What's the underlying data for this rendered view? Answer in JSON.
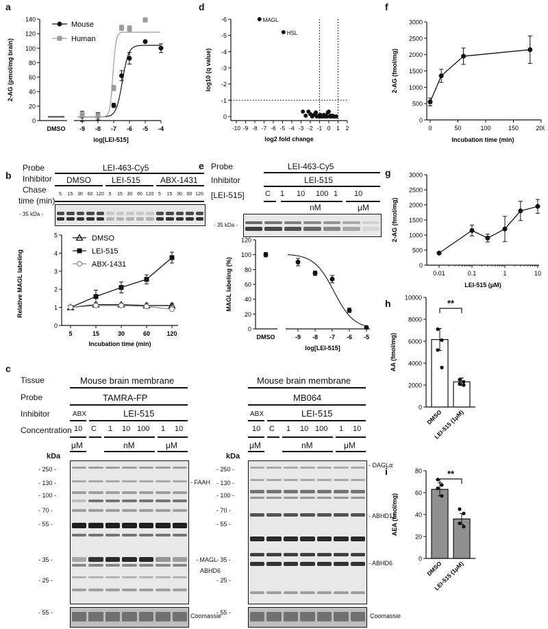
{
  "panels": {
    "a": {
      "label": "a"
    },
    "b": {
      "label": "b",
      "probe_title": "Probe",
      "inhibitor_title": "Inhibitor",
      "chase_title": "Chase",
      "chase_unit": "time (min)",
      "probe_name": "LEI-463-Cy5",
      "groups": [
        "DMSO",
        "LEI-515",
        "ABX-1431"
      ],
      "times": [
        "5",
        "15",
        "30",
        "60",
        "120",
        "5",
        "15",
        "30",
        "60",
        "120",
        "5",
        "15",
        "30",
        "60",
        "120"
      ],
      "marker": "- 35 kDa -"
    },
    "c": {
      "label": "c",
      "rows": [
        "Tissue",
        "Probe",
        "Inhibitor",
        "Concentration"
      ],
      "kda": "kDa",
      "left": {
        "tissue": "Mouse brain membrane",
        "probe": "TAMRA-FP",
        "abx": "ABX",
        "inhibitor": "LEI-515",
        "conc": [
          "10",
          "C",
          "1",
          "10",
          "100",
          "1",
          "10"
        ],
        "units": [
          "μM",
          "nM",
          "μM"
        ],
        "markers": [
          "- 250 -",
          "- 130 -",
          "- 100 -",
          "- 70 -",
          "- 55 -",
          "- 35 -",
          "- 25 -",
          "- 55 -"
        ],
        "bands": [
          "- FAAH",
          "- MAGL",
          "ABHD6",
          "Coomassie"
        ]
      },
      "right": {
        "tissue": "Mouse brain membrane",
        "probe": "MB064",
        "abx": "ABX",
        "inhibitor": "LEI-515",
        "conc": [
          "10",
          "C",
          "1",
          "10",
          "100",
          "1",
          "10"
        ],
        "units": [
          "μM",
          "nM",
          "μM"
        ],
        "markers": [
          "- 250 -",
          "- 130 -",
          "- 100 -",
          "- 70 -",
          "- 55 -",
          "- 35 -",
          "- 25 -",
          "- 55 -"
        ],
        "bands": [
          "- DAGLα",
          "- ABHD12",
          "- ABHD6",
          "Coomassie"
        ]
      }
    },
    "d": {
      "label": "d"
    },
    "e": {
      "label": "e",
      "probe_title": "Probe",
      "inhibitor_title": "Inhibitor",
      "conc_title": "[LEI-515]",
      "probe_name": "LEI-463-Cy5",
      "inhibitor": "LEI-515",
      "conc": [
        "C",
        "1",
        "10",
        "100",
        "1",
        "10"
      ],
      "units": [
        "nM",
        "μM"
      ],
      "marker": "- 35 kDa -"
    },
    "f": {
      "label": "f"
    },
    "g": {
      "label": "g"
    },
    "h": {
      "label": "h"
    },
    "i": {
      "label": "i"
    }
  },
  "chart_data": [
    {
      "id": "a",
      "type": "line",
      "xlabel": "log[LEI-515]",
      "ylabel": "2-AG (pmol/mg brain)",
      "xticks": [
        "DMSO",
        "-9",
        "-8",
        "-7",
        "-6",
        "-5",
        "-4"
      ],
      "ylim": [
        0,
        140
      ],
      "yticks": [
        0,
        20,
        40,
        60,
        80,
        100,
        120,
        140
      ],
      "series": [
        {
          "name": "Mouse",
          "color": "#111111",
          "x": [
            -9,
            -8,
            -7,
            -6.5,
            -6,
            -5,
            -4
          ],
          "y": [
            6,
            6,
            21,
            62,
            86,
            109,
            100
          ],
          "err": [
            7,
            5,
            3,
            7,
            8,
            0,
            6
          ],
          "dmso": 5
        },
        {
          "name": "Human",
          "color": "#9a9a9a",
          "x": [
            -9,
            -8,
            -7,
            -6.5,
            -6,
            -5
          ],
          "y": [
            8,
            7,
            45,
            128,
            127,
            139
          ],
          "err": [
            4,
            3,
            4,
            4,
            4,
            3
          ],
          "dmso": 6
        }
      ]
    },
    {
      "id": "b",
      "type": "line",
      "xlabel": "Incubation time  (min)",
      "ylabel": "Relative MAGL labeling",
      "categories": [
        "5",
        "15",
        "30",
        "60",
        "120"
      ],
      "ylim": [
        0,
        5
      ],
      "yticks": [
        0,
        1,
        2,
        3,
        4,
        5
      ],
      "series": [
        {
          "name": "DMSO",
          "marker": "triangle",
          "values": [
            1.0,
            1.15,
            1.15,
            1.1,
            1.1
          ],
          "err": [
            0.05,
            0.1,
            0.08,
            0.1,
            0.1
          ]
        },
        {
          "name": "LEI-515",
          "marker": "square",
          "values": [
            1.0,
            1.6,
            2.1,
            2.55,
            3.75
          ],
          "err": [
            0.08,
            0.35,
            0.3,
            0.25,
            0.3
          ]
        },
        {
          "name": "ABX-1431",
          "marker": "circle-open",
          "values": [
            1.0,
            1.1,
            1.1,
            1.05,
            0.9
          ],
          "err": [
            0.05,
            0.08,
            0.05,
            0.1,
            0.08
          ]
        }
      ]
    },
    {
      "id": "d",
      "type": "scatter",
      "xlabel": "log2 fold change",
      "ylabel": "log10 (q value)",
      "xlim": [
        -10,
        2
      ],
      "ylim": [
        -6,
        0
      ],
      "xticks": [
        "-10",
        "-9",
        "-8",
        "-7",
        "-6",
        "-5",
        "-4",
        "-3",
        "-2",
        "-1",
        "0",
        "1",
        "2"
      ],
      "yticks": [
        "-6",
        "-5",
        "-4",
        "-3",
        "-2",
        "-1",
        "0"
      ],
      "labels": [
        "MAGL",
        "HSL"
      ],
      "points": [
        [
          -7.5,
          -6.0
        ],
        [
          -4.9,
          -5.2
        ],
        [
          -2.8,
          -0.3
        ],
        [
          -2.5,
          -0.05
        ],
        [
          -2.2,
          -0.3
        ],
        [
          -2.0,
          -0.15
        ],
        [
          -1.8,
          0
        ],
        [
          -1.6,
          -0.1
        ],
        [
          -1.4,
          -0.25
        ],
        [
          -1.3,
          0
        ],
        [
          -1.1,
          -0.05
        ],
        [
          -1.0,
          0
        ],
        [
          -0.9,
          -0.1
        ],
        [
          -0.8,
          0
        ],
        [
          -0.7,
          -0.05
        ],
        [
          -0.6,
          0
        ],
        [
          -0.5,
          -0.1
        ],
        [
          -0.4,
          0
        ],
        [
          -0.3,
          -0.05
        ],
        [
          -0.2,
          0
        ],
        [
          -0.1,
          -0.25
        ],
        [
          0.0,
          -0.3
        ],
        [
          0.1,
          0
        ],
        [
          0.2,
          -0.05
        ],
        [
          0.3,
          0
        ],
        [
          0.4,
          -0.05
        ],
        [
          0.5,
          0
        ],
        [
          0.6,
          0
        ],
        [
          0.8,
          0
        ]
      ],
      "vlines": [
        -1,
        1
      ],
      "hline": -1
    },
    {
      "id": "e",
      "type": "line",
      "xlabel": "log[LEI-515]",
      "ylabel": "MAGL labeling (%)",
      "xticks": [
        "DMSO",
        "-9",
        "-8",
        "-7",
        "-6",
        "-5"
      ],
      "ylim": [
        0,
        120
      ],
      "yticks": [
        0,
        20,
        40,
        60,
        80,
        100,
        120
      ],
      "series": [
        {
          "name": "",
          "x": [
            -9,
            -8,
            -7,
            -6,
            -5
          ],
          "y": [
            90,
            75,
            67,
            25,
            2
          ],
          "err": [
            5,
            3,
            5,
            3,
            1
          ],
          "dmso": 100
        }
      ]
    },
    {
      "id": "f",
      "type": "line",
      "xlabel": "Incubation time (min)",
      "ylabel": "2-AG (fmol/mg)",
      "xlim": [
        0,
        200
      ],
      "xticks": [
        0,
        50,
        100,
        150,
        200
      ],
      "ylim": [
        0,
        3000
      ],
      "yticks": [
        0,
        500,
        1000,
        1500,
        2000,
        2500,
        3000
      ],
      "series": [
        {
          "name": "",
          "x": [
            0,
            20,
            60,
            180
          ],
          "y": [
            550,
            1350,
            1950,
            2150
          ],
          "err": [
            120,
            200,
            250,
            420
          ]
        }
      ]
    },
    {
      "id": "g",
      "type": "line",
      "xlabel": "LEI-515 (μM)",
      "ylabel": "2-AG (fmol/mg)",
      "xscale": "log",
      "xticks": [
        "0.01",
        "0.1",
        "1",
        "10"
      ],
      "ylim": [
        0,
        3000
      ],
      "yticks": [
        0,
        500,
        1000,
        1500,
        2000,
        2500,
        3000
      ],
      "series": [
        {
          "name": "",
          "x": [
            0.01,
            0.1,
            0.3,
            1,
            3,
            10
          ],
          "y": [
            400,
            1150,
            900,
            1200,
            1800,
            1950
          ],
          "err": [
            0,
            180,
            130,
            420,
            320,
            230
          ]
        }
      ]
    },
    {
      "id": "h",
      "type": "bar",
      "xlabel": "",
      "ylabel": "AA (fmol/mg)",
      "categories": [
        "DMSO",
        "LEI-515 (1μM)"
      ],
      "values": [
        6150,
        2300
      ],
      "err": [
        1000,
        350
      ],
      "ylim": [
        0,
        10000
      ],
      "yticks": [
        0,
        2000,
        4000,
        6000,
        8000,
        10000
      ],
      "annotation": "**",
      "dots": [
        [
          7100,
          6100,
          5200,
          3600
        ],
        [
          2500,
          2300,
          2100,
          2000
        ]
      ]
    },
    {
      "id": "i",
      "type": "bar",
      "xlabel": "",
      "ylabel": "AEA (fmol/mg)",
      "categories": [
        "DMSO",
        "LEI-515 (1μM)"
      ],
      "values": [
        63,
        36
      ],
      "err": [
        6,
        5
      ],
      "ylim": [
        0,
        80
      ],
      "yticks": [
        0,
        20,
        40,
        60,
        80
      ],
      "annotation": "**",
      "dots": [
        [
          72,
          67,
          64,
          57
        ],
        [
          45,
          41,
          32,
          29
        ]
      ]
    }
  ]
}
